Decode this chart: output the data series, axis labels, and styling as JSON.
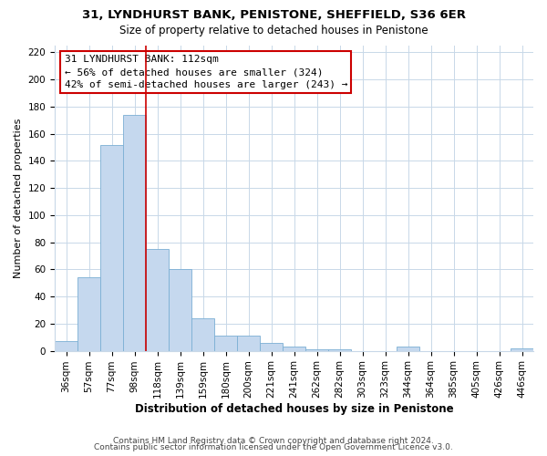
{
  "title": "31, LYNDHURST BANK, PENISTONE, SHEFFIELD, S36 6ER",
  "subtitle": "Size of property relative to detached houses in Penistone",
  "xlabel": "Distribution of detached houses by size in Penistone",
  "ylabel": "Number of detached properties",
  "bar_labels": [
    "36sqm",
    "57sqm",
    "77sqm",
    "98sqm",
    "118sqm",
    "139sqm",
    "159sqm",
    "180sqm",
    "200sqm",
    "221sqm",
    "241sqm",
    "262sqm",
    "282sqm",
    "303sqm",
    "323sqm",
    "344sqm",
    "364sqm",
    "385sqm",
    "405sqm",
    "426sqm",
    "446sqm"
  ],
  "bar_values": [
    7,
    54,
    152,
    174,
    75,
    60,
    24,
    11,
    11,
    6,
    3,
    1,
    1,
    0,
    0,
    3,
    0,
    0,
    0,
    0,
    2
  ],
  "bar_color": "#c5d8ee",
  "bar_edge_color": "#7bafd4",
  "vline_x": 3.5,
  "vline_color": "#cc0000",
  "annotation_title": "31 LYNDHURST BANK: 112sqm",
  "annotation_line1": "← 56% of detached houses are smaller (324)",
  "annotation_line2": "42% of semi-detached houses are larger (243) →",
  "annotation_box_facecolor": "#ffffff",
  "annotation_box_edgecolor": "#cc0000",
  "ylim": [
    0,
    225
  ],
  "yticks": [
    0,
    20,
    40,
    60,
    80,
    100,
    120,
    140,
    160,
    180,
    200,
    220
  ],
  "footer1": "Contains HM Land Registry data © Crown copyright and database right 2024.",
  "footer2": "Contains public sector information licensed under the Open Government Licence v3.0.",
  "grid_color": "#c8d8e8",
  "background_color": "#ffffff",
  "title_fontsize": 9.5,
  "subtitle_fontsize": 8.5,
  "xlabel_fontsize": 8.5,
  "ylabel_fontsize": 8,
  "tick_fontsize": 7.5,
  "footer_fontsize": 6.5,
  "ann_fontsize": 8
}
